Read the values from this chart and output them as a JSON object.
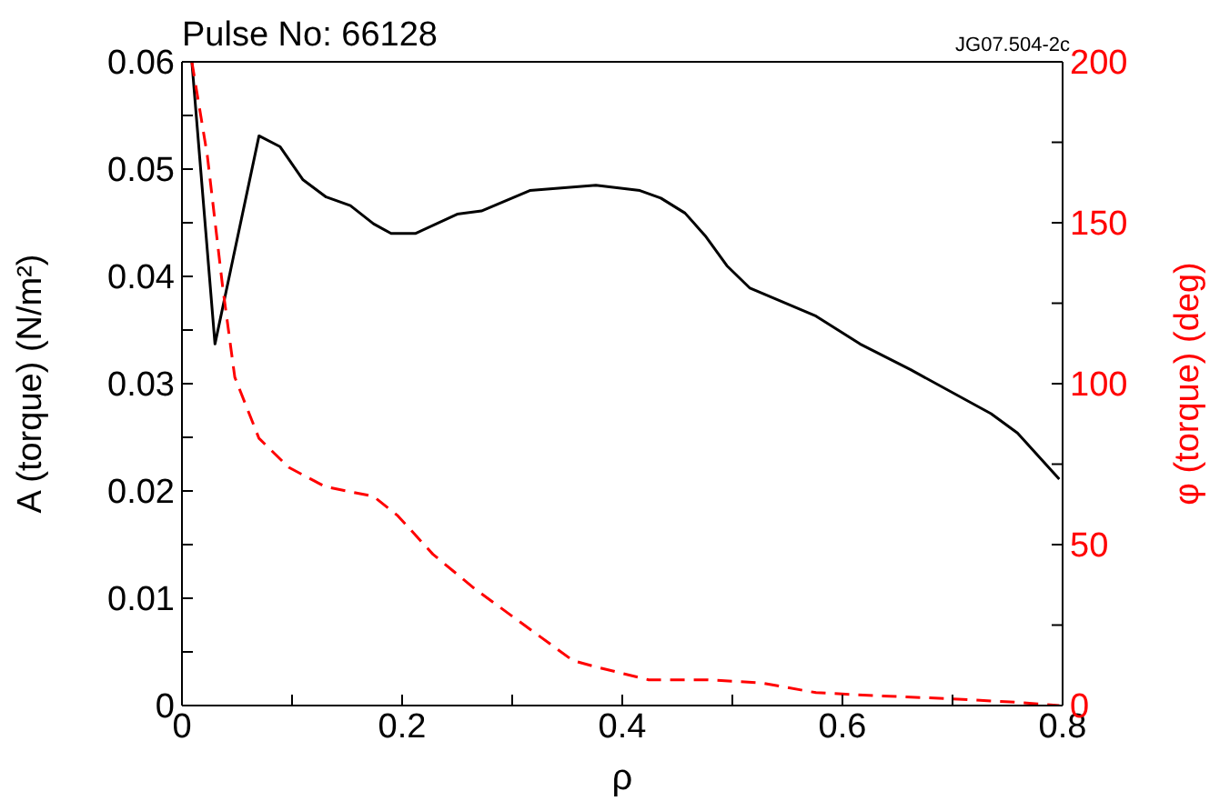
{
  "chart_data": {
    "type": "line",
    "title": "Pulse No: 66128",
    "annotations": [
      "JG07.504-2c"
    ],
    "xlabel": "ρ",
    "ylabel": "A (torque) (N/m²)",
    "y2label": "φ (torque) (deg)",
    "xlim": [
      0,
      0.8
    ],
    "xticks": [
      0,
      {
        "value": 0.1,
        "label": null
      },
      0.2,
      {
        "value": 0.3,
        "label": null
      },
      0.4,
      {
        "value": 0.5,
        "label": null
      },
      0.6,
      {
        "value": 0.7,
        "label": null
      },
      0.8
    ],
    "ylim": [
      0,
      0.06
    ],
    "yticks": [
      0,
      {
        "value": 0.005,
        "label": null
      },
      0.01,
      {
        "value": 0.015,
        "label": null
      },
      0.02,
      {
        "value": 0.025,
        "label": null
      },
      0.03,
      {
        "value": 0.035,
        "label": null
      },
      0.04,
      {
        "value": 0.045,
        "label": null
      },
      0.05,
      {
        "value": 0.055,
        "label": null
      },
      0.06
    ],
    "y2lim": [
      0,
      200
    ],
    "y2ticks": [
      0,
      {
        "value": 25,
        "label": null
      },
      50,
      {
        "value": 75,
        "label": null
      },
      100,
      {
        "value": 125,
        "label": null
      },
      150,
      {
        "value": 175,
        "label": null
      },
      200
    ],
    "marker": "none",
    "series": [
      {
        "color": "#000000",
        "line_style": "solid",
        "x": [
          0.009,
          0.03,
          0.07,
          0.089,
          0.11,
          0.131,
          0.153,
          0.174,
          0.19,
          0.212,
          0.25,
          0.272,
          0.316,
          0.376,
          0.416,
          0.435,
          0.457,
          0.476,
          0.495,
          0.516,
          0.576,
          0.616,
          0.662,
          0.735,
          0.759,
          0.797
        ],
        "values": [
          0.06,
          0.0337,
          0.0531,
          0.0521,
          0.049,
          0.0474,
          0.0466,
          0.0449,
          0.044,
          0.044,
          0.0458,
          0.0461,
          0.048,
          0.0485,
          0.048,
          0.0473,
          0.0459,
          0.0437,
          0.041,
          0.0389,
          0.0363,
          0.0337,
          0.0313,
          0.0272,
          0.0254,
          0.0211
        ]
      },
      {
        "color": "#ff0000",
        "line_style": "dashed",
        "axis": "y2",
        "x": [
          0.009,
          0.023,
          0.037,
          0.048,
          0.07,
          0.097,
          0.13,
          0.174,
          0.196,
          0.228,
          0.267,
          0.311,
          0.355,
          0.376,
          0.424,
          0.478,
          0.527,
          0.576,
          0.635,
          0.705,
          0.759,
          0.797
        ],
        "values": [
          200,
          171,
          130,
          102,
          83,
          74,
          68,
          65,
          59,
          47,
          36,
          25,
          14,
          12,
          8,
          8,
          7,
          4,
          3,
          2,
          1,
          0
        ]
      }
    ]
  }
}
